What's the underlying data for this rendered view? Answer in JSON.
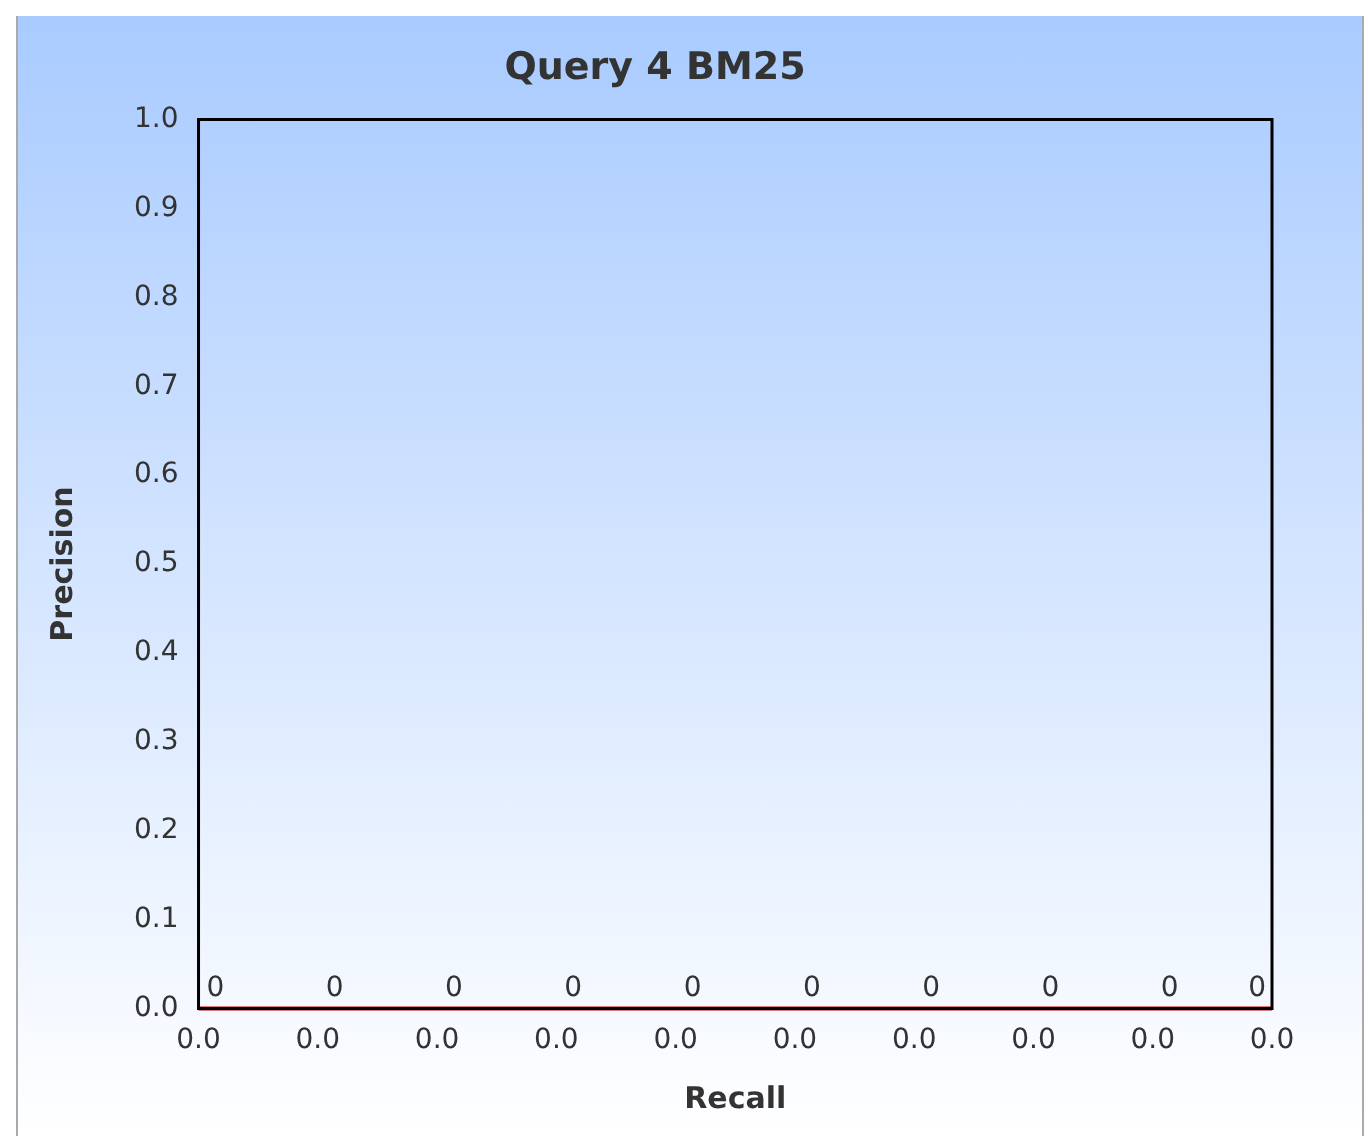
{
  "chart_data": {
    "type": "line",
    "title": "Query 4 BM25",
    "xlabel": "Recall",
    "ylabel": "Precision",
    "categories": [
      "0.0",
      "0.0",
      "0.0",
      "0.0",
      "0.0",
      "0.0",
      "0.0",
      "0.0",
      "0.0",
      "0.0"
    ],
    "series": [
      {
        "color": "#cc0000",
        "values": [
          0,
          0,
          0,
          0,
          0,
          0,
          0,
          0,
          0,
          0
        ]
      }
    ],
    "ylim": [
      0,
      1
    ],
    "yticks": [
      {
        "value": 0,
        "label": "0.0"
      },
      {
        "value": 0.1,
        "label": "0.1"
      },
      {
        "value": 0.2,
        "label": "0.2"
      },
      {
        "value": 0.3,
        "label": "0.3"
      },
      {
        "value": 0.4,
        "label": "0.4"
      },
      {
        "value": 0.5,
        "label": "0.5"
      },
      {
        "value": 0.6,
        "label": "0.6"
      },
      {
        "value": 0.7,
        "label": "0.7"
      },
      {
        "value": 0.8,
        "label": "0.8"
      },
      {
        "value": 0.9,
        "label": "0.9"
      },
      {
        "value": 1,
        "label": "1.0"
      }
    ],
    "data_labels": true,
    "grid": false,
    "legend": false,
    "marker": "none",
    "line_style": "solid"
  }
}
